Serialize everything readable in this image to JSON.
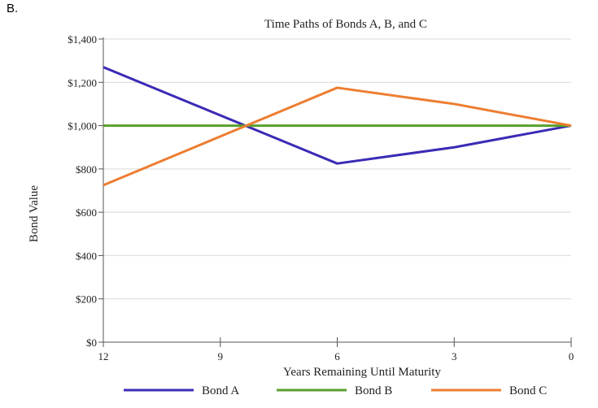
{
  "corner_label": "B.",
  "chart_data": {
    "type": "line",
    "title": "Time Paths of Bonds A, B, and C",
    "xlabel": "Years Remaining Until Maturity",
    "ylabel": "Bond Value",
    "x_ticks": [
      12,
      9,
      6,
      3,
      0
    ],
    "x_tick_labels": [
      "12",
      "9",
      "6",
      "3",
      "0"
    ],
    "y_ticks": [
      0,
      200,
      400,
      600,
      800,
      1000,
      1200,
      1400
    ],
    "y_tick_labels": [
      "$0",
      "$200",
      "$400",
      "$600",
      "$800",
      "$1,000",
      "$1,200",
      "$1,400"
    ],
    "xlim": [
      12,
      0
    ],
    "ylim": [
      0,
      1400
    ],
    "grid": true,
    "legend_position": "bottom",
    "series": [
      {
        "name": "Bond A",
        "color": "#3b2bb5",
        "x": [
          12,
          6,
          3,
          0
        ],
        "values": [
          1270,
          825,
          900,
          1000
        ]
      },
      {
        "name": "Bond B",
        "color": "#5aa02c",
        "x": [
          12,
          6,
          3,
          0
        ],
        "values": [
          1000,
          1000,
          1000,
          1000
        ]
      },
      {
        "name": "Bond C",
        "color": "#ed7d31",
        "x": [
          12,
          6,
          3,
          0
        ],
        "values": [
          725,
          1175,
          1100,
          1000
        ]
      }
    ]
  }
}
